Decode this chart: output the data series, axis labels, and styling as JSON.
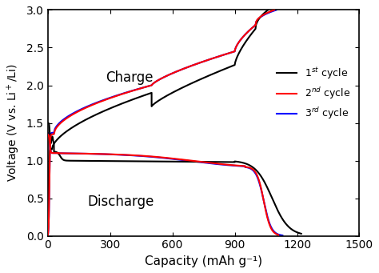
{
  "xlabel": "Capacity (mAh g⁻¹)",
  "ylabel": "Voltage (V νσ. Li⁺/Li)",
  "ylabel2": "Voltage (V vs. Li⁺/Li)",
  "xlim": [
    0,
    1500
  ],
  "ylim": [
    0.0,
    3.0
  ],
  "xticks": [
    0,
    300,
    600,
    900,
    1200,
    1500
  ],
  "yticks": [
    0.0,
    0.5,
    1.0,
    1.5,
    2.0,
    2.5,
    3.0
  ],
  "charge_label": "Charge",
  "discharge_label": "Discharge",
  "legend_entries": [
    "1$^{st}$ cycle",
    "2$^{nd}$ cycle",
    "3$^{rd}$ cycle"
  ],
  "colors": [
    "black",
    "red",
    "blue"
  ],
  "linewidth": 1.5,
  "background_color": "#ffffff"
}
